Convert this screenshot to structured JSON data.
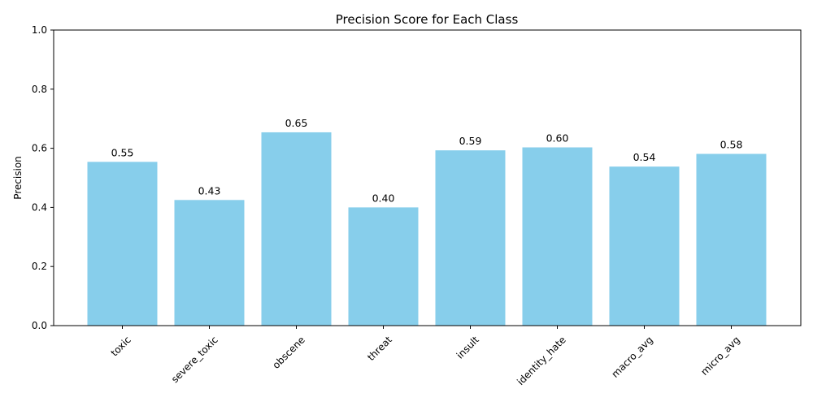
{
  "chart_data": {
    "type": "bar",
    "title": "Precision Score for Each Class",
    "xlabel": "",
    "ylabel": "Precision",
    "categories": [
      "toxic",
      "severe_toxic",
      "obscene",
      "threat",
      "insult",
      "identity_hate",
      "macro_avg",
      "micro_avg"
    ],
    "values": [
      0.554,
      0.425,
      0.654,
      0.4,
      0.593,
      0.603,
      0.538,
      0.581
    ],
    "value_labels": [
      "0.55",
      "0.43",
      "0.65",
      "0.40",
      "0.59",
      "0.60",
      "0.54",
      "0.58"
    ],
    "ylim": [
      0,
      1.0
    ],
    "yticks": [
      0.0,
      0.2,
      0.4,
      0.6,
      0.8,
      1.0
    ],
    "ytick_labels": [
      "0.0",
      "0.2",
      "0.4",
      "0.6",
      "0.8",
      "1.0"
    ],
    "bar_color": "#87CEEB",
    "grid": false,
    "legend": "none"
  }
}
